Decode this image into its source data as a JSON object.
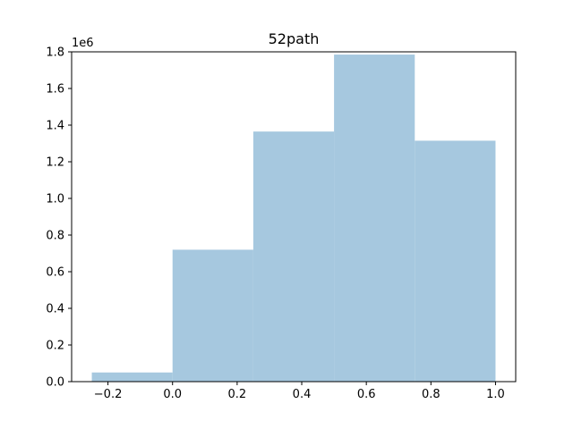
{
  "chart_data": {
    "type": "bar",
    "title": "52path",
    "xlabel": "",
    "ylabel": "",
    "y_offset_label": "1e6",
    "bins": [
      {
        "x0": -0.25,
        "x1": 0.0,
        "value": 0.05
      },
      {
        "x0": 0.0,
        "x1": 0.25,
        "value": 0.72
      },
      {
        "x0": 0.25,
        "x1": 0.5,
        "value": 1.365
      },
      {
        "x0": 0.5,
        "x1": 0.75,
        "value": 1.785
      },
      {
        "x0": 0.75,
        "x1": 1.0,
        "value": 1.315
      }
    ],
    "xlim": [
      -0.3125,
      1.0625
    ],
    "ylim": [
      0,
      1.8
    ],
    "xticks": [
      -0.2,
      0.0,
      0.2,
      0.4,
      0.6,
      0.8,
      1.0
    ],
    "xtick_labels": [
      "−0.2",
      "0.0",
      "0.2",
      "0.4",
      "0.6",
      "0.8",
      "1.0"
    ],
    "yticks": [
      0.0,
      0.2,
      0.4,
      0.6,
      0.8,
      1.0,
      1.2,
      1.4,
      1.6,
      1.8
    ],
    "ytick_labels": [
      "0.0",
      "0.2",
      "0.4",
      "0.6",
      "0.8",
      "1.0",
      "1.2",
      "1.4",
      "1.6",
      "1.8"
    ],
    "bar_color": "#a6c8df",
    "grid": false
  }
}
